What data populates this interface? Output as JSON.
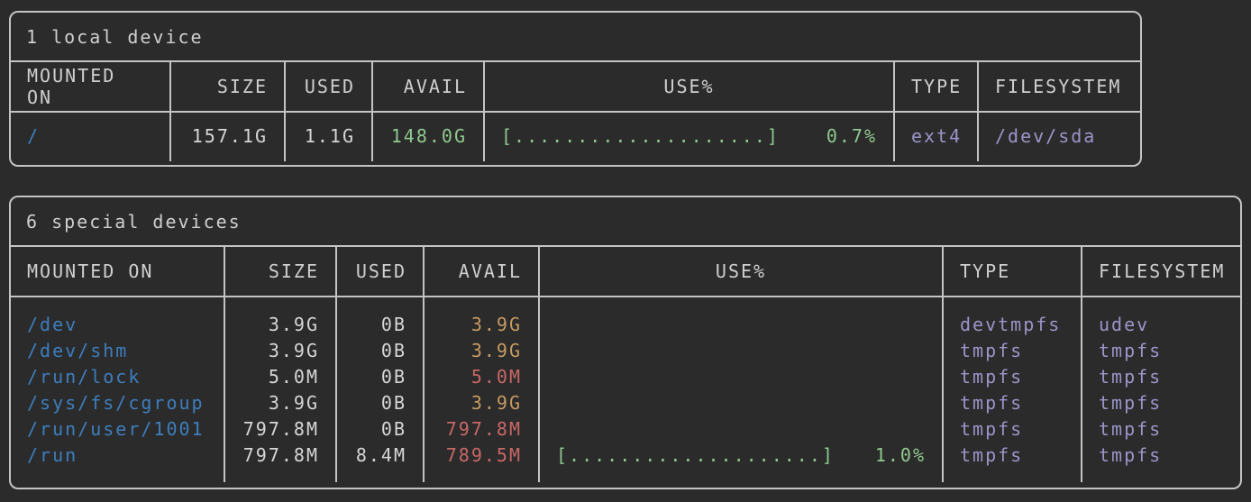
{
  "theme": {
    "background": "#2b2b2b",
    "border": "#c4c4c4",
    "text": "#d6d6d6",
    "header_text": "#cfcfcf",
    "mount_blue": "#3d7ebd",
    "ok_green": "#8fc98f",
    "warn_yellow": "#c79b62",
    "crit_red": "#c96767",
    "type_purple": "#9b95c9"
  },
  "tables": [
    {
      "title": "1 local device",
      "columns": [
        "MOUNTED ON",
        "SIZE",
        "USED",
        "AVAIL",
        "USE%",
        "TYPE",
        "FILESYSTEM"
      ],
      "rows": [
        {
          "mounted_on": "/",
          "size": "157.1G",
          "used": "1.1G",
          "avail": "148.0G",
          "avail_color": "green",
          "usage_bar": "[....................]",
          "usage_pct": "0.7%",
          "type": "ext4",
          "filesystem": "/dev/sda"
        }
      ]
    },
    {
      "title": "6 special devices",
      "columns": [
        "MOUNTED ON",
        "SIZE",
        "USED",
        "AVAIL",
        "USE%",
        "TYPE",
        "FILESYSTEM"
      ],
      "rows": [
        {
          "mounted_on": "/dev",
          "size": "3.9G",
          "used": "0B",
          "avail": "3.9G",
          "avail_color": "yellow",
          "usage_bar": "",
          "usage_pct": "",
          "type": "devtmpfs",
          "filesystem": "udev"
        },
        {
          "mounted_on": "/dev/shm",
          "size": "3.9G",
          "used": "0B",
          "avail": "3.9G",
          "avail_color": "yellow",
          "usage_bar": "",
          "usage_pct": "",
          "type": "tmpfs",
          "filesystem": "tmpfs"
        },
        {
          "mounted_on": "/run/lock",
          "size": "5.0M",
          "used": "0B",
          "avail": "5.0M",
          "avail_color": "red",
          "usage_bar": "",
          "usage_pct": "",
          "type": "tmpfs",
          "filesystem": "tmpfs"
        },
        {
          "mounted_on": "/sys/fs/cgroup",
          "size": "3.9G",
          "used": "0B",
          "avail": "3.9G",
          "avail_color": "yellow",
          "usage_bar": "",
          "usage_pct": "",
          "type": "tmpfs",
          "filesystem": "tmpfs"
        },
        {
          "mounted_on": "/run/user/1001",
          "size": "797.8M",
          "used": "0B",
          "avail": "797.8M",
          "avail_color": "red",
          "usage_bar": "",
          "usage_pct": "",
          "type": "tmpfs",
          "filesystem": "tmpfs"
        },
        {
          "mounted_on": "/run",
          "size": "797.8M",
          "used": "8.4M",
          "avail": "789.5M",
          "avail_color": "red",
          "usage_bar": "[....................]",
          "usage_pct": "1.0%",
          "type": "tmpfs",
          "filesystem": "tmpfs"
        }
      ]
    }
  ]
}
